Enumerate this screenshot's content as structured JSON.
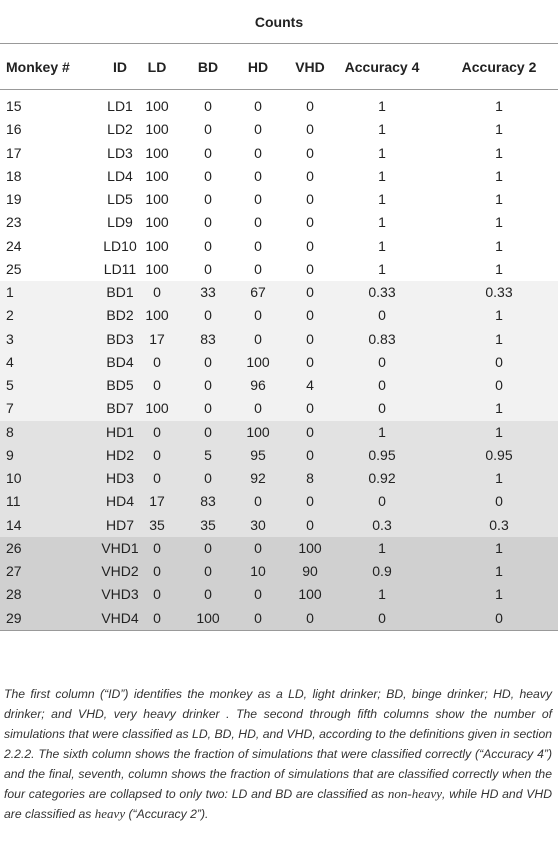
{
  "table": {
    "group_header": "Counts",
    "columns": [
      "Monkey #",
      "ID",
      "LD",
      "BD",
      "HD",
      "VHD",
      "Accuracy 4",
      "Accuracy 2"
    ],
    "groups": [
      {
        "rows": [
          [
            "15",
            "LD1",
            "100",
            "0",
            "0",
            "0",
            "1",
            "1"
          ],
          [
            "16",
            "LD2",
            "100",
            "0",
            "0",
            "0",
            "1",
            "1"
          ],
          [
            "17",
            "LD3",
            "100",
            "0",
            "0",
            "0",
            "1",
            "1"
          ],
          [
            "18",
            "LD4",
            "100",
            "0",
            "0",
            "0",
            "1",
            "1"
          ],
          [
            "19",
            "LD5",
            "100",
            "0",
            "0",
            "0",
            "1",
            "1"
          ],
          [
            "23",
            "LD9",
            "100",
            "0",
            "0",
            "0",
            "1",
            "1"
          ],
          [
            "24",
            "LD10",
            "100",
            "0",
            "0",
            "0",
            "1",
            "1"
          ],
          [
            "25",
            "LD11",
            "100",
            "0",
            "0",
            "0",
            "1",
            "1"
          ]
        ]
      },
      {
        "rows": [
          [
            "1",
            "BD1",
            "0",
            "33",
            "67",
            "0",
            "0.33",
            "0.33"
          ],
          [
            "2",
            "BD2",
            "100",
            "0",
            "0",
            "0",
            "0",
            "1"
          ],
          [
            "3",
            "BD3",
            "17",
            "83",
            "0",
            "0",
            "0.83",
            "1"
          ],
          [
            "4",
            "BD4",
            "0",
            "0",
            "100",
            "0",
            "0",
            "0"
          ],
          [
            "5",
            "BD5",
            "0",
            "0",
            "96",
            "4",
            "0",
            "0"
          ],
          [
            "7",
            "BD7",
            "100",
            "0",
            "0",
            "0",
            "0",
            "1"
          ]
        ]
      },
      {
        "rows": [
          [
            "8",
            "HD1",
            "0",
            "0",
            "100",
            "0",
            "1",
            "1"
          ],
          [
            "9",
            "HD2",
            "0",
            "5",
            "95",
            "0",
            "0.95",
            "0.95"
          ],
          [
            "10",
            "HD3",
            "0",
            "0",
            "92",
            "8",
            "0.92",
            "1"
          ],
          [
            "11",
            "HD4",
            "17",
            "83",
            "0",
            "0",
            "0",
            "0"
          ],
          [
            "14",
            "HD7",
            "35",
            "35",
            "30",
            "0",
            "0.3",
            "0.3"
          ]
        ]
      },
      {
        "rows": [
          [
            "26",
            "VHD1",
            "0",
            "0",
            "0",
            "100",
            "1",
            "1"
          ],
          [
            "27",
            "VHD2",
            "0",
            "0",
            "10",
            "90",
            "0.9",
            "1"
          ],
          [
            "28",
            "VHD3",
            "0",
            "0",
            "0",
            "100",
            "1",
            "1"
          ],
          [
            "29",
            "VHD4",
            "0",
            "100",
            "0",
            "0",
            "0",
            "0"
          ]
        ]
      }
    ]
  },
  "caption": [
    "The first column (“ID”) identifies the monkey as a LD, light drinker; BD, binge drinker; HD, heavy drinker; and VHD, very heavy drinker . The second through fifth columns show the number of simulations that were classified as LD, BD, HD, and VHD, according to the definitions given in section 2.2.2. The sixth column shows the fraction of simulations that were classified correctly (“Accuracy 4”) and the final, seventh, column shows the fraction of simulations that are classified correctly when the four categories are collapsed to only two: LD and BD are classified as ",
    "non-heavy",
    ", while HD and VHD are classified as ",
    "heavy",
    " (“Accuracy 2”)."
  ]
}
